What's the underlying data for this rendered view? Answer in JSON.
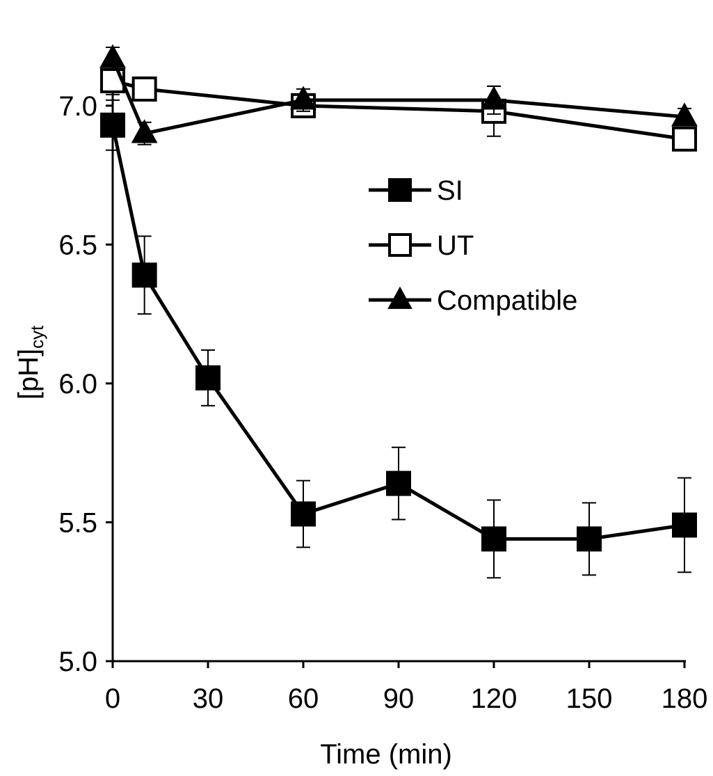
{
  "chart_data": {
    "type": "line",
    "xlabel": "Time (min)",
    "ylabel": {
      "main": "[pH]",
      "subscript": "cyt"
    },
    "xlim": [
      0,
      180
    ],
    "ylim": [
      5.0,
      7.15
    ],
    "xticks": [
      0,
      30,
      60,
      90,
      120,
      150,
      180
    ],
    "yticks": [
      5.0,
      5.5,
      6.0,
      6.5,
      7.0
    ],
    "xtick_labels": [
      "0",
      "30",
      "60",
      "90",
      "120",
      "150",
      "180"
    ],
    "ytick_labels": [
      "5.0",
      "5.5",
      "6.0",
      "6.5",
      "7.0"
    ],
    "grid": false,
    "legend_position": "center-right",
    "series": [
      {
        "name": "SI",
        "marker": "filled-square",
        "color": "#000000",
        "x": [
          0,
          10,
          30,
          60,
          90,
          120,
          150,
          180
        ],
        "y": [
          6.93,
          6.39,
          6.02,
          5.53,
          5.64,
          5.44,
          5.44,
          5.49
        ],
        "err": [
          0.09,
          0.14,
          0.1,
          0.12,
          0.13,
          0.14,
          0.13,
          0.17
        ]
      },
      {
        "name": "UT",
        "marker": "open-square",
        "color": "#000000",
        "x": [
          0,
          10,
          60,
          120,
          180
        ],
        "y": [
          7.09,
          7.06,
          7.0,
          6.98,
          6.88
        ],
        "err": [
          0.05,
          0.03,
          0.04,
          0.09,
          0.03
        ]
      },
      {
        "name": "Compatible",
        "marker": "filled-triangle",
        "color": "#000000",
        "x": [
          0,
          10,
          60,
          120,
          180
        ],
        "y": [
          7.17,
          6.9,
          7.02,
          7.02,
          6.96
        ],
        "err": [
          0.04,
          0.04,
          0.04,
          0.05,
          0.03
        ]
      }
    ]
  }
}
